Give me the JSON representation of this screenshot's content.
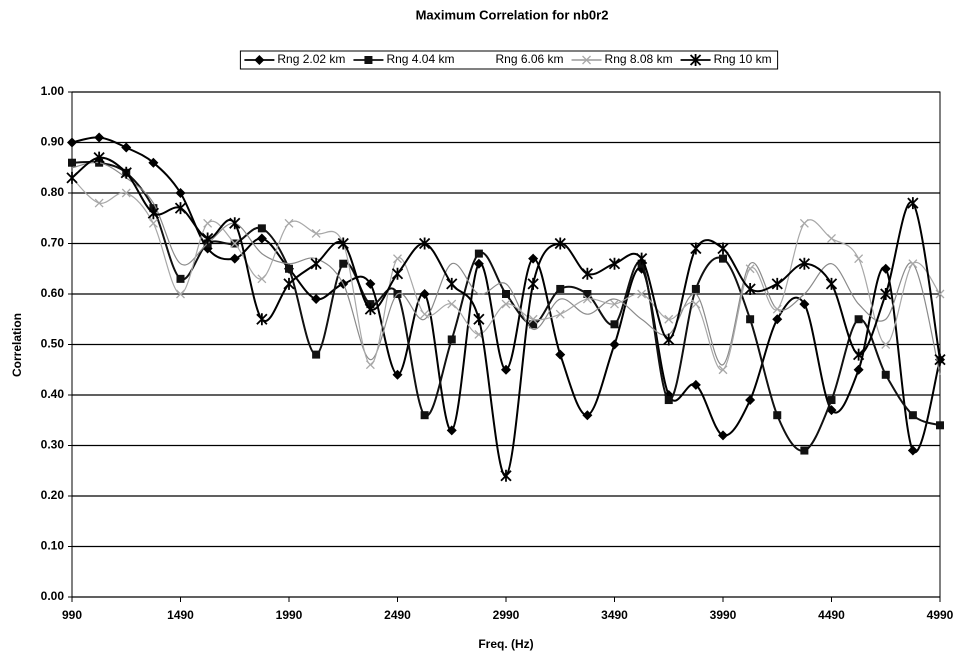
{
  "chart_data": {
    "type": "line",
    "title": "Maximum Correlation for nb0r2",
    "x_label": "Freq. (Hz)",
    "y_label": "Correlation",
    "x": [
      990,
      1115,
      1240,
      1365,
      1490,
      1615,
      1740,
      1865,
      1990,
      2115,
      2240,
      2365,
      2490,
      2615,
      2740,
      2865,
      2990,
      3115,
      3240,
      3365,
      3490,
      3615,
      3740,
      3865,
      3990,
      4115,
      4240,
      4365,
      4490,
      4615,
      4740,
      4865,
      4990
    ],
    "series": [
      {
        "name": "Rng 2.02 km",
        "color": "#000000",
        "marker": "diamond",
        "values": [
          0.9,
          0.91,
          0.89,
          0.86,
          0.8,
          0.69,
          0.67,
          0.71,
          0.65,
          0.59,
          0.62,
          0.62,
          0.44,
          0.6,
          0.33,
          0.66,
          0.45,
          0.67,
          0.48,
          0.36,
          0.5,
          0.65,
          0.4,
          0.42,
          0.32,
          0.39,
          0.55,
          0.58,
          0.37,
          0.45,
          0.65,
          0.29,
          0.47
        ]
      },
      {
        "name": "Rng 4.04 km",
        "color": "#111111",
        "marker": "square",
        "values": [
          0.86,
          0.86,
          0.84,
          0.77,
          0.63,
          0.7,
          0.7,
          0.73,
          0.65,
          0.48,
          0.66,
          0.58,
          0.6,
          0.36,
          0.51,
          0.68,
          0.6,
          0.54,
          0.61,
          0.6,
          0.54,
          0.66,
          0.39,
          0.61,
          0.67,
          0.55,
          0.36,
          0.29,
          0.39,
          0.55,
          0.44,
          0.36,
          0.34
        ]
      },
      {
        "name": "Rng 6.06 km",
        "color": "#8a8a8a",
        "marker": "none",
        "values": [
          0.85,
          0.86,
          0.83,
          0.78,
          0.66,
          0.7,
          0.74,
          0.68,
          0.66,
          0.67,
          0.62,
          0.47,
          0.6,
          0.55,
          0.66,
          0.6,
          0.62,
          0.53,
          0.59,
          0.56,
          0.59,
          0.55,
          0.52,
          0.6,
          0.46,
          0.66,
          0.57,
          0.6,
          0.66,
          0.58,
          0.55,
          0.66,
          0.44
        ]
      },
      {
        "name": "Rng 8.08 km",
        "color": "#a8a8a8",
        "marker": "x",
        "values": [
          0.83,
          0.78,
          0.8,
          0.74,
          0.6,
          0.74,
          0.7,
          0.63,
          0.74,
          0.72,
          0.7,
          0.46,
          0.67,
          0.56,
          0.58,
          0.52,
          0.58,
          0.55,
          0.56,
          0.59,
          0.58,
          0.6,
          0.55,
          0.58,
          0.45,
          0.65,
          0.57,
          0.74,
          0.71,
          0.67,
          0.5,
          0.66,
          0.6
        ]
      },
      {
        "name": "Rng 10 km",
        "color": "#000000",
        "marker": "asterisk",
        "values": [
          0.83,
          0.87,
          0.84,
          0.76,
          0.77,
          0.71,
          0.74,
          0.55,
          0.62,
          0.66,
          0.7,
          0.57,
          0.64,
          0.7,
          0.62,
          0.55,
          0.24,
          0.62,
          0.7,
          0.64,
          0.66,
          0.67,
          0.51,
          0.69,
          0.69,
          0.61,
          0.62,
          0.66,
          0.62,
          0.48,
          0.6,
          0.78,
          0.47
        ]
      }
    ],
    "xlim": [
      990,
      4990
    ],
    "xticks": [
      990,
      1490,
      1990,
      2490,
      2990,
      3490,
      3990,
      4490,
      4990
    ],
    "ylim": [
      0,
      1
    ],
    "yticks": [
      {
        "value": 0,
        "label": "0.00"
      },
      {
        "value": 0.1,
        "label": "0.10"
      },
      {
        "value": 0.2,
        "label": "0.20"
      },
      {
        "value": 0.3,
        "label": "0.30"
      },
      {
        "value": 0.4,
        "label": "0.40"
      },
      {
        "value": 0.5,
        "label": "0.50"
      },
      {
        "value": 0.6,
        "label": "0.60"
      },
      {
        "value": 0.7,
        "label": "0.70"
      },
      {
        "value": 0.8,
        "label": "0.80"
      },
      {
        "value": 0.9,
        "label": "0.90"
      },
      {
        "value": 1,
        "label": "1.00"
      }
    ],
    "grid": true,
    "legend": "top"
  }
}
